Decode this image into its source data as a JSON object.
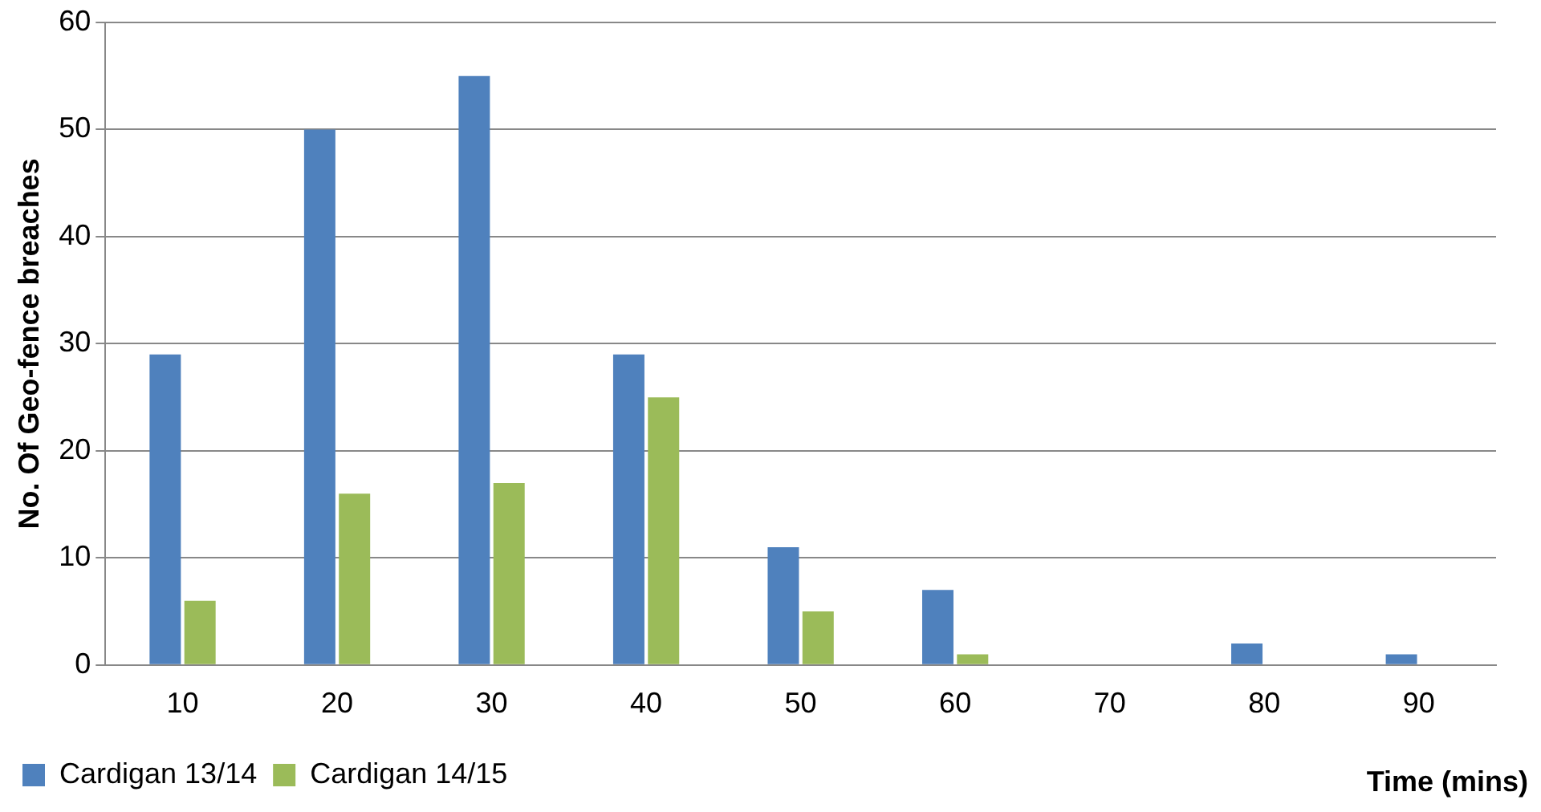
{
  "chart_data": {
    "type": "bar",
    "ylabel": "No. Of Geo-fence breaches",
    "xlabel": "Time (mins)",
    "categories": [
      "10",
      "20",
      "30",
      "40",
      "50",
      "60",
      "70",
      "80",
      "90"
    ],
    "series": [
      {
        "name": "Cardigan 13/14",
        "color": "#4f81bd",
        "values": [
          29,
          50,
          55,
          29,
          11,
          7,
          0,
          2,
          1
        ]
      },
      {
        "name": "Cardigan 14/15",
        "color": "#9bbb59",
        "values": [
          6,
          16,
          17,
          25,
          5,
          1,
          0,
          0,
          0
        ]
      }
    ],
    "ylim": [
      0,
      60
    ],
    "yticks": [
      0,
      10,
      20,
      30,
      40,
      50,
      60
    ],
    "grid": "y",
    "legend": "bottom left"
  }
}
